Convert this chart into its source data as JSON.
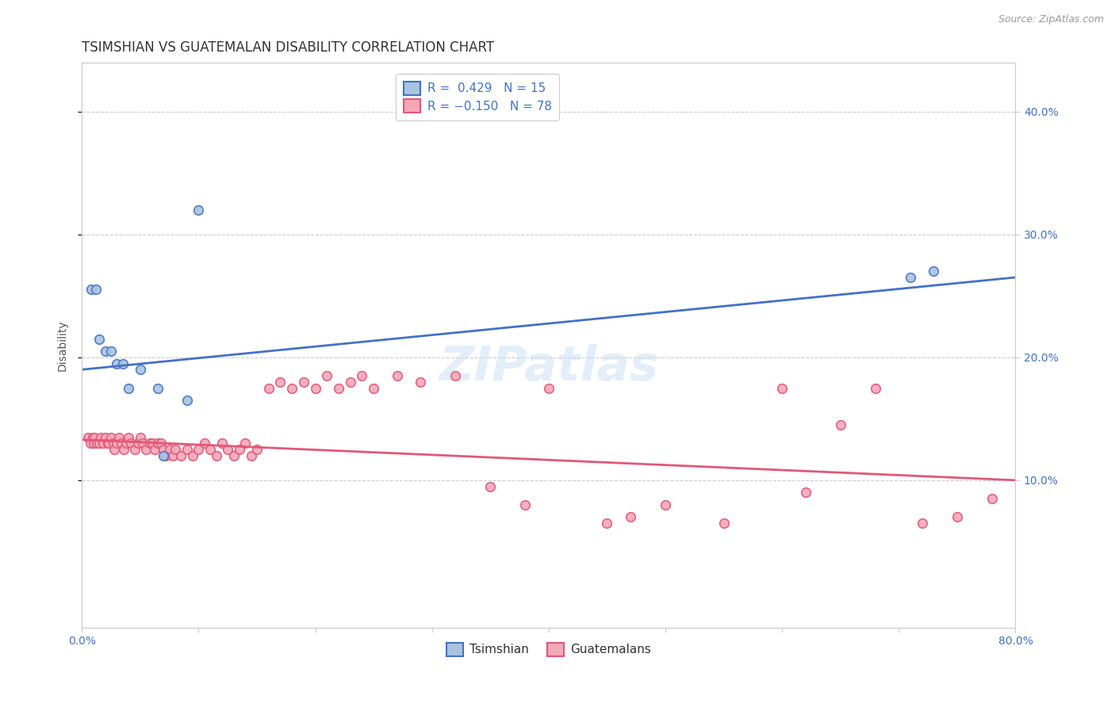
{
  "title": "TSIMSHIAN VS GUATEMALAN DISABILITY CORRELATION CHART",
  "source": "Source: ZipAtlas.com",
  "ylabel": "Disability",
  "xlim": [
    0.0,
    0.8
  ],
  "ylim": [
    -0.02,
    0.44
  ],
  "yticks": [
    0.1,
    0.2,
    0.3,
    0.4
  ],
  "ytick_labels": [
    "10.0%",
    "20.0%",
    "30.0%",
    "40.0%"
  ],
  "xticks": [
    0.0,
    0.1,
    0.2,
    0.3,
    0.4,
    0.5,
    0.6,
    0.7,
    0.8
  ],
  "grid_color": "#cccccc",
  "background_color": "#ffffff",
  "tsimshian_color": "#a8c4e0",
  "guatemalan_color": "#f4a8b8",
  "trend_tsimshian_color": "#4472c4",
  "trend_guatemalan_color": "#e05878",
  "R_tsimshian": 0.429,
  "N_tsimshian": 15,
  "R_guatemalan": -0.15,
  "N_guatemalan": 78,
  "tsimshian_x": [
    0.008,
    0.012,
    0.015,
    0.02,
    0.025,
    0.03,
    0.035,
    0.04,
    0.05,
    0.065,
    0.07,
    0.09,
    0.1,
    0.71,
    0.73
  ],
  "tsimshian_y": [
    0.255,
    0.255,
    0.215,
    0.205,
    0.205,
    0.195,
    0.195,
    0.175,
    0.19,
    0.175,
    0.12,
    0.165,
    0.32,
    0.265,
    0.27
  ],
  "guatemalan_x": [
    0.005,
    0.007,
    0.009,
    0.01,
    0.011,
    0.013,
    0.015,
    0.016,
    0.018,
    0.02,
    0.022,
    0.023,
    0.025,
    0.027,
    0.028,
    0.03,
    0.032,
    0.034,
    0.036,
    0.038,
    0.04,
    0.042,
    0.045,
    0.048,
    0.05,
    0.052,
    0.055,
    0.058,
    0.06,
    0.062,
    0.065,
    0.068,
    0.07,
    0.072,
    0.075,
    0.078,
    0.08,
    0.085,
    0.09,
    0.095,
    0.1,
    0.105,
    0.11,
    0.115,
    0.12,
    0.125,
    0.13,
    0.135,
    0.14,
    0.145,
    0.15,
    0.16,
    0.17,
    0.18,
    0.19,
    0.2,
    0.21,
    0.22,
    0.23,
    0.24,
    0.25,
    0.27,
    0.29,
    0.32,
    0.35,
    0.38,
    0.4,
    0.45,
    0.47,
    0.5,
    0.55,
    0.6,
    0.62,
    0.65,
    0.68,
    0.72,
    0.75,
    0.78
  ],
  "guatemalan_y": [
    0.135,
    0.13,
    0.135,
    0.13,
    0.135,
    0.13,
    0.13,
    0.135,
    0.13,
    0.135,
    0.13,
    0.13,
    0.135,
    0.13,
    0.125,
    0.13,
    0.135,
    0.13,
    0.125,
    0.13,
    0.135,
    0.13,
    0.125,
    0.13,
    0.135,
    0.13,
    0.125,
    0.13,
    0.13,
    0.125,
    0.13,
    0.13,
    0.125,
    0.12,
    0.125,
    0.12,
    0.125,
    0.12,
    0.125,
    0.12,
    0.125,
    0.13,
    0.125,
    0.12,
    0.13,
    0.125,
    0.12,
    0.125,
    0.13,
    0.12,
    0.125,
    0.175,
    0.18,
    0.175,
    0.18,
    0.175,
    0.185,
    0.175,
    0.18,
    0.185,
    0.175,
    0.185,
    0.18,
    0.185,
    0.095,
    0.08,
    0.175,
    0.065,
    0.07,
    0.08,
    0.065,
    0.175,
    0.09,
    0.145,
    0.175,
    0.065,
    0.07,
    0.085
  ],
  "trend_tsim_x0": 0.0,
  "trend_tsim_x1": 0.8,
  "trend_tsim_y0": 0.19,
  "trend_tsim_y1": 0.265,
  "trend_guat_x0": 0.0,
  "trend_guat_x1": 0.8,
  "trend_guat_y0": 0.133,
  "trend_guat_y1": 0.1,
  "watermark": "ZIPatlas",
  "marker_size": 70,
  "marker_linewidth": 1.2,
  "trend_linewidth": 2.0,
  "title_fontsize": 12,
  "label_fontsize": 10,
  "tick_fontsize": 10,
  "legend_fontsize": 11,
  "tick_color": "#4472c4"
}
